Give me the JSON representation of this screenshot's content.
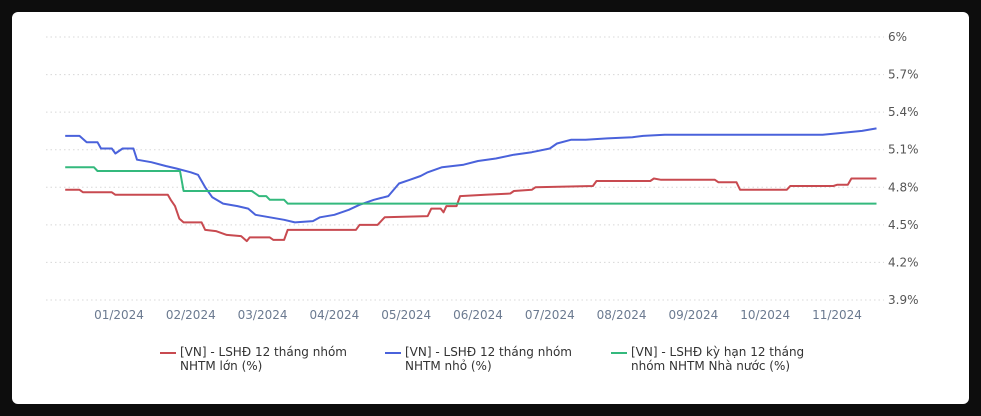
{
  "chart_data": {
    "type": "line",
    "x_ticks": [
      "01/2024",
      "02/2024",
      "03/2024",
      "04/2024",
      "05/2024",
      "06/2024",
      "07/2024",
      "08/2024",
      "09/2024",
      "10/2024",
      "11/2024"
    ],
    "y_ticks": [
      "6%",
      "5.7%",
      "5.4%",
      "5.1%",
      "4.8%",
      "4.5%",
      "4.2%",
      "3.9%"
    ],
    "ylim": [
      3.9,
      6.0
    ],
    "xlim": [
      -0.75,
      10.55
    ],
    "grid": true,
    "legend_position": "bottom",
    "series": [
      {
        "name": "[VN] - LSHĐ 12 tháng nhóm NHTM lớn (%)",
        "color": "#c84a50",
        "points": [
          [
            -0.75,
            4.78
          ],
          [
            -0.55,
            4.78
          ],
          [
            -0.5,
            4.76
          ],
          [
            -0.1,
            4.76
          ],
          [
            -0.05,
            4.74
          ],
          [
            0.68,
            4.74
          ],
          [
            0.72,
            4.7
          ],
          [
            0.78,
            4.65
          ],
          [
            0.84,
            4.55
          ],
          [
            0.9,
            4.52
          ],
          [
            1.15,
            4.52
          ],
          [
            1.2,
            4.46
          ],
          [
            1.35,
            4.45
          ],
          [
            1.5,
            4.42
          ],
          [
            1.7,
            4.41
          ],
          [
            1.78,
            4.37
          ],
          [
            1.82,
            4.4
          ],
          [
            2.1,
            4.4
          ],
          [
            2.15,
            4.38
          ],
          [
            2.3,
            4.38
          ],
          [
            2.35,
            4.46
          ],
          [
            3.3,
            4.46
          ],
          [
            3.35,
            4.5
          ],
          [
            3.6,
            4.5
          ],
          [
            3.7,
            4.56
          ],
          [
            4.3,
            4.57
          ],
          [
            4.35,
            4.63
          ],
          [
            4.48,
            4.63
          ],
          [
            4.52,
            4.6
          ],
          [
            4.56,
            4.65
          ],
          [
            4.7,
            4.65
          ],
          [
            4.75,
            4.73
          ],
          [
            5.1,
            4.74
          ],
          [
            5.45,
            4.75
          ],
          [
            5.5,
            4.77
          ],
          [
            5.75,
            4.78
          ],
          [
            5.8,
            4.8
          ],
          [
            6.6,
            4.81
          ],
          [
            6.65,
            4.85
          ],
          [
            7.4,
            4.85
          ],
          [
            7.45,
            4.87
          ],
          [
            7.55,
            4.86
          ],
          [
            8.3,
            4.86
          ],
          [
            8.35,
            4.84
          ],
          [
            8.6,
            4.84
          ],
          [
            8.65,
            4.78
          ],
          [
            9.3,
            4.78
          ],
          [
            9.35,
            4.81
          ],
          [
            9.95,
            4.81
          ],
          [
            10.0,
            4.82
          ],
          [
            10.15,
            4.82
          ],
          [
            10.2,
            4.87
          ],
          [
            10.55,
            4.87
          ]
        ]
      },
      {
        "name": "[VN] - LSHĐ 12 tháng nhóm NHTM nhỏ (%)",
        "color": "#4a62db",
        "points": [
          [
            -0.75,
            5.21
          ],
          [
            -0.55,
            5.21
          ],
          [
            -0.45,
            5.16
          ],
          [
            -0.3,
            5.16
          ],
          [
            -0.25,
            5.11
          ],
          [
            -0.1,
            5.11
          ],
          [
            -0.05,
            5.07
          ],
          [
            0.05,
            5.11
          ],
          [
            0.2,
            5.11
          ],
          [
            0.25,
            5.02
          ],
          [
            0.45,
            5.0
          ],
          [
            0.65,
            4.97
          ],
          [
            0.8,
            4.95
          ],
          [
            1.0,
            4.92
          ],
          [
            1.1,
            4.9
          ],
          [
            1.2,
            4.8
          ],
          [
            1.3,
            4.72
          ],
          [
            1.45,
            4.67
          ],
          [
            1.65,
            4.65
          ],
          [
            1.8,
            4.63
          ],
          [
            1.9,
            4.58
          ],
          [
            2.1,
            4.56
          ],
          [
            2.3,
            4.54
          ],
          [
            2.45,
            4.52
          ],
          [
            2.7,
            4.53
          ],
          [
            2.8,
            4.56
          ],
          [
            3.0,
            4.58
          ],
          [
            3.2,
            4.62
          ],
          [
            3.35,
            4.66
          ],
          [
            3.55,
            4.7
          ],
          [
            3.75,
            4.73
          ],
          [
            3.9,
            4.83
          ],
          [
            4.05,
            4.86
          ],
          [
            4.2,
            4.89
          ],
          [
            4.3,
            4.92
          ],
          [
            4.5,
            4.96
          ],
          [
            4.8,
            4.98
          ],
          [
            5.0,
            5.01
          ],
          [
            5.25,
            5.03
          ],
          [
            5.5,
            5.06
          ],
          [
            5.75,
            5.08
          ],
          [
            6.0,
            5.11
          ],
          [
            6.1,
            5.15
          ],
          [
            6.3,
            5.18
          ],
          [
            6.5,
            5.18
          ],
          [
            6.8,
            5.19
          ],
          [
            7.15,
            5.2
          ],
          [
            7.3,
            5.21
          ],
          [
            7.6,
            5.22
          ],
          [
            9.0,
            5.22
          ],
          [
            9.05,
            5.22
          ],
          [
            9.8,
            5.22
          ],
          [
            10.0,
            5.23
          ],
          [
            10.35,
            5.25
          ],
          [
            10.55,
            5.27
          ]
        ]
      },
      {
        "name": "[VN] - LSHĐ kỳ hạn 12 tháng nhóm NHTM Nhà nước (%)",
        "color": "#34b97d",
        "points": [
          [
            -0.75,
            4.96
          ],
          [
            -0.35,
            4.96
          ],
          [
            -0.3,
            4.93
          ],
          [
            0.85,
            4.93
          ],
          [
            0.9,
            4.77
          ],
          [
            1.85,
            4.77
          ],
          [
            1.95,
            4.73
          ],
          [
            2.05,
            4.73
          ],
          [
            2.1,
            4.7
          ],
          [
            2.3,
            4.7
          ],
          [
            2.35,
            4.67
          ],
          [
            10.55,
            4.67
          ]
        ]
      }
    ]
  }
}
